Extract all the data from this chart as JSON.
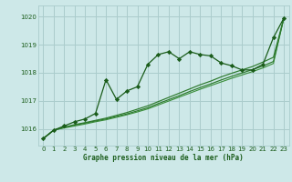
{
  "title": "Graphe pression niveau de la mer (hPa)",
  "bg_color": "#cde8e8",
  "grid_color": "#aacccc",
  "line_color_dark": "#1a5c1a",
  "line_color_mid": "#2d7a2d",
  "line_color_light": "#3a8f3a",
  "xlim": [
    -0.5,
    23.5
  ],
  "ylim": [
    1015.4,
    1020.4
  ],
  "yticks": [
    1016,
    1017,
    1018,
    1019,
    1020
  ],
  "xticks": [
    0,
    1,
    2,
    3,
    4,
    5,
    6,
    7,
    8,
    9,
    10,
    11,
    12,
    13,
    14,
    15,
    16,
    17,
    18,
    19,
    20,
    21,
    22,
    23
  ],
  "series1_x": [
    0,
    1,
    2,
    3,
    4,
    5,
    6,
    7,
    8,
    9,
    10,
    11,
    12,
    13,
    14,
    15,
    16,
    17,
    18,
    19,
    20,
    21,
    22,
    23
  ],
  "series1_y": [
    1015.65,
    1015.95,
    1016.1,
    1016.25,
    1016.35,
    1016.55,
    1017.75,
    1017.05,
    1017.35,
    1017.5,
    1018.3,
    1018.65,
    1018.75,
    1018.5,
    1018.75,
    1018.65,
    1018.6,
    1018.35,
    1018.25,
    1018.1,
    1018.1,
    1018.3,
    1019.25,
    1019.95
  ],
  "series2_x": [
    0,
    1,
    2,
    3,
    4,
    5,
    6,
    7,
    8,
    9,
    10,
    11,
    12,
    13,
    14,
    15,
    16,
    17,
    18,
    19,
    20,
    21,
    22,
    23
  ],
  "series2_y": [
    1015.65,
    1015.95,
    1016.05,
    1016.15,
    1016.22,
    1016.3,
    1016.38,
    1016.48,
    1016.58,
    1016.7,
    1016.82,
    1016.97,
    1017.12,
    1017.27,
    1017.42,
    1017.57,
    1017.7,
    1017.85,
    1017.98,
    1018.1,
    1018.22,
    1018.38,
    1018.55,
    1019.95
  ],
  "series3_x": [
    0,
    1,
    2,
    3,
    4,
    5,
    6,
    7,
    8,
    9,
    10,
    11,
    12,
    13,
    14,
    15,
    16,
    17,
    18,
    19,
    20,
    21,
    22,
    23
  ],
  "series3_y": [
    1015.65,
    1015.95,
    1016.05,
    1016.13,
    1016.2,
    1016.28,
    1016.35,
    1016.44,
    1016.53,
    1016.64,
    1016.75,
    1016.9,
    1017.04,
    1017.18,
    1017.33,
    1017.47,
    1017.6,
    1017.74,
    1017.87,
    1017.99,
    1018.11,
    1018.24,
    1018.4,
    1019.95
  ],
  "series4_x": [
    0,
    1,
    2,
    3,
    4,
    5,
    6,
    7,
    8,
    9,
    10,
    11,
    12,
    13,
    14,
    15,
    16,
    17,
    18,
    19,
    20,
    21,
    22,
    23
  ],
  "series4_y": [
    1015.65,
    1015.95,
    1016.03,
    1016.1,
    1016.17,
    1016.25,
    1016.32,
    1016.41,
    1016.5,
    1016.6,
    1016.71,
    1016.85,
    1016.99,
    1017.13,
    1017.27,
    1017.41,
    1017.54,
    1017.67,
    1017.8,
    1017.92,
    1018.04,
    1018.17,
    1018.33,
    1019.95
  ]
}
